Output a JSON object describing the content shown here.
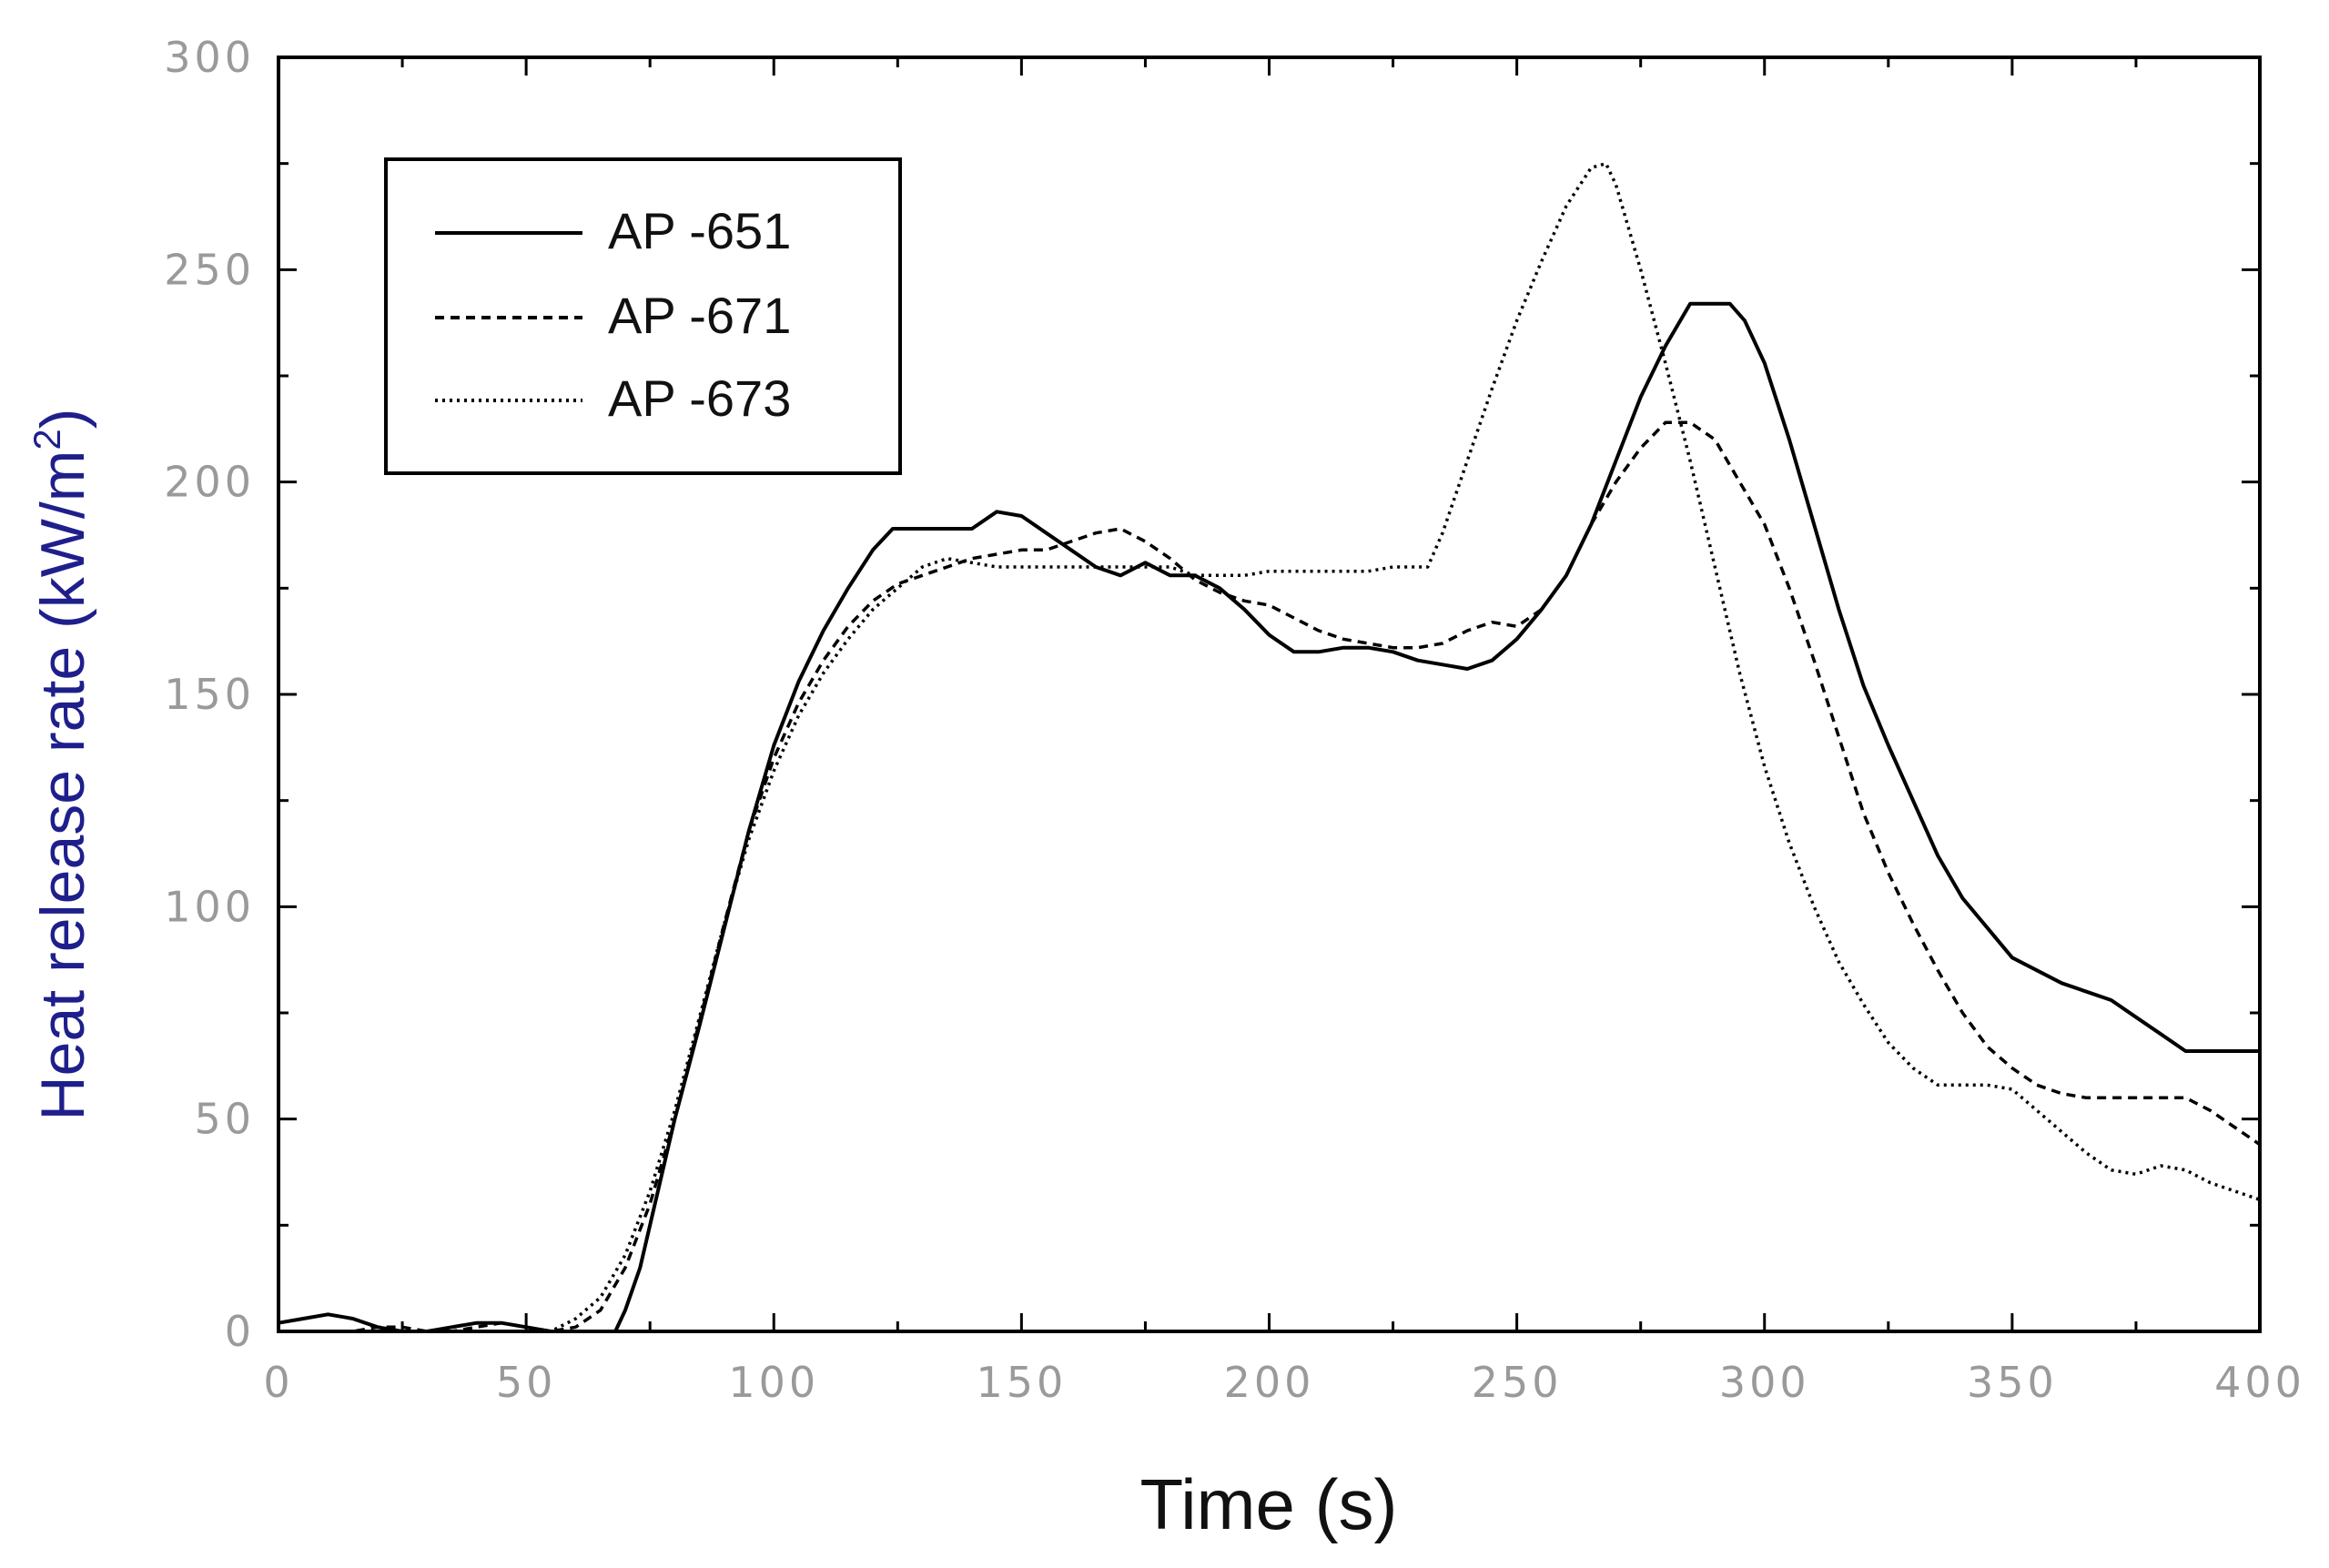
{
  "chart_data": {
    "type": "line",
    "title": "",
    "xlabel": "Time (s)",
    "ylabel_main": "Heat release rate (kW/m",
    "ylabel_sup": "2",
    "ylabel_close": ")",
    "xlim": [
      0,
      400
    ],
    "ylim": [
      0,
      300
    ],
    "xticks": [
      0,
      50,
      100,
      150,
      200,
      250,
      300,
      350,
      400
    ],
    "yticks": [
      0,
      50,
      100,
      150,
      200,
      250,
      300
    ],
    "grid": false,
    "legend_position": "top-left",
    "colors": {
      "axis": "#000000",
      "ticks_text": "#9a9a9a",
      "xlabel": "#111111",
      "ylabel": "#1f1f8c"
    },
    "series": [
      {
        "name": "AP -651",
        "style": "solid",
        "points": [
          [
            0,
            2
          ],
          [
            5,
            3
          ],
          [
            10,
            4
          ],
          [
            15,
            3
          ],
          [
            20,
            1
          ],
          [
            25,
            0
          ],
          [
            30,
            0
          ],
          [
            35,
            1
          ],
          [
            40,
            2
          ],
          [
            45,
            2
          ],
          [
            50,
            1
          ],
          [
            55,
            0
          ],
          [
            60,
            0
          ],
          [
            65,
            0
          ],
          [
            68,
            0
          ],
          [
            70,
            5
          ],
          [
            73,
            15
          ],
          [
            76,
            30
          ],
          [
            80,
            50
          ],
          [
            85,
            72
          ],
          [
            90,
            95
          ],
          [
            95,
            118
          ],
          [
            100,
            138
          ],
          [
            105,
            153
          ],
          [
            110,
            165
          ],
          [
            115,
            175
          ],
          [
            120,
            184
          ],
          [
            124,
            189
          ],
          [
            130,
            189
          ],
          [
            135,
            189
          ],
          [
            140,
            189
          ],
          [
            145,
            193
          ],
          [
            150,
            192
          ],
          [
            155,
            188
          ],
          [
            160,
            184
          ],
          [
            165,
            180
          ],
          [
            170,
            178
          ],
          [
            175,
            181
          ],
          [
            180,
            178
          ],
          [
            185,
            178
          ],
          [
            190,
            175
          ],
          [
            195,
            170
          ],
          [
            200,
            164
          ],
          [
            205,
            160
          ],
          [
            210,
            160
          ],
          [
            215,
            161
          ],
          [
            220,
            161
          ],
          [
            225,
            160
          ],
          [
            230,
            158
          ],
          [
            235,
            157
          ],
          [
            240,
            156
          ],
          [
            245,
            158
          ],
          [
            250,
            163
          ],
          [
            255,
            170
          ],
          [
            260,
            178
          ],
          [
            265,
            190
          ],
          [
            270,
            205
          ],
          [
            275,
            220
          ],
          [
            280,
            232
          ],
          [
            285,
            242
          ],
          [
            290,
            242
          ],
          [
            293,
            242
          ],
          [
            296,
            238
          ],
          [
            300,
            228
          ],
          [
            305,
            210
          ],
          [
            310,
            190
          ],
          [
            315,
            170
          ],
          [
            320,
            152
          ],
          [
            325,
            138
          ],
          [
            330,
            125
          ],
          [
            335,
            112
          ],
          [
            340,
            102
          ],
          [
            345,
            95
          ],
          [
            350,
            88
          ],
          [
            355,
            85
          ],
          [
            360,
            82
          ],
          [
            365,
            80
          ],
          [
            370,
            78
          ],
          [
            375,
            74
          ],
          [
            380,
            70
          ],
          [
            385,
            66
          ],
          [
            390,
            66
          ],
          [
            395,
            66
          ],
          [
            400,
            66
          ]
        ]
      },
      {
        "name": "AP -671",
        "style": "dashed",
        "points": [
          [
            0,
            0
          ],
          [
            5,
            0
          ],
          [
            10,
            0
          ],
          [
            15,
            0
          ],
          [
            20,
            1
          ],
          [
            25,
            1
          ],
          [
            30,
            0
          ],
          [
            35,
            0
          ],
          [
            40,
            1
          ],
          [
            45,
            2
          ],
          [
            50,
            1
          ],
          [
            55,
            0
          ],
          [
            60,
            1
          ],
          [
            65,
            5
          ],
          [
            70,
            15
          ],
          [
            75,
            30
          ],
          [
            80,
            50
          ],
          [
            85,
            73
          ],
          [
            90,
            96
          ],
          [
            95,
            118
          ],
          [
            100,
            135
          ],
          [
            105,
            148
          ],
          [
            110,
            158
          ],
          [
            115,
            166
          ],
          [
            120,
            172
          ],
          [
            125,
            176
          ],
          [
            130,
            178
          ],
          [
            135,
            180
          ],
          [
            140,
            182
          ],
          [
            145,
            183
          ],
          [
            150,
            184
          ],
          [
            155,
            184
          ],
          [
            160,
            186
          ],
          [
            165,
            188
          ],
          [
            170,
            189
          ],
          [
            175,
            186
          ],
          [
            180,
            182
          ],
          [
            185,
            177
          ],
          [
            190,
            174
          ],
          [
            195,
            172
          ],
          [
            200,
            171
          ],
          [
            205,
            168
          ],
          [
            210,
            165
          ],
          [
            215,
            163
          ],
          [
            220,
            162
          ],
          [
            225,
            161
          ],
          [
            230,
            161
          ],
          [
            235,
            162
          ],
          [
            240,
            165
          ],
          [
            245,
            167
          ],
          [
            250,
            166
          ],
          [
            255,
            170
          ],
          [
            260,
            178
          ],
          [
            265,
            190
          ],
          [
            270,
            200
          ],
          [
            275,
            208
          ],
          [
            280,
            214
          ],
          [
            285,
            214
          ],
          [
            290,
            210
          ],
          [
            295,
            200
          ],
          [
            300,
            190
          ],
          [
            305,
            175
          ],
          [
            310,
            158
          ],
          [
            315,
            140
          ],
          [
            320,
            122
          ],
          [
            325,
            108
          ],
          [
            330,
            96
          ],
          [
            335,
            85
          ],
          [
            340,
            75
          ],
          [
            345,
            67
          ],
          [
            350,
            62
          ],
          [
            355,
            58
          ],
          [
            360,
            56
          ],
          [
            365,
            55
          ],
          [
            370,
            55
          ],
          [
            375,
            55
          ],
          [
            380,
            55
          ],
          [
            385,
            55
          ],
          [
            390,
            52
          ],
          [
            395,
            48
          ],
          [
            400,
            44
          ]
        ]
      },
      {
        "name": "AP -673",
        "style": "dotted",
        "points": [
          [
            0,
            0
          ],
          [
            5,
            0
          ],
          [
            10,
            0
          ],
          [
            15,
            0
          ],
          [
            20,
            0
          ],
          [
            25,
            0
          ],
          [
            30,
            0
          ],
          [
            35,
            0
          ],
          [
            40,
            0
          ],
          [
            45,
            0
          ],
          [
            50,
            0
          ],
          [
            55,
            0
          ],
          [
            60,
            3
          ],
          [
            65,
            8
          ],
          [
            70,
            18
          ],
          [
            75,
            33
          ],
          [
            80,
            52
          ],
          [
            85,
            74
          ],
          [
            90,
            96
          ],
          [
            95,
            116
          ],
          [
            100,
            132
          ],
          [
            105,
            145
          ],
          [
            110,
            155
          ],
          [
            115,
            163
          ],
          [
            120,
            170
          ],
          [
            125,
            175
          ],
          [
            130,
            180
          ],
          [
            135,
            182
          ],
          [
            140,
            181
          ],
          [
            145,
            180
          ],
          [
            150,
            180
          ],
          [
            155,
            180
          ],
          [
            160,
            180
          ],
          [
            165,
            180
          ],
          [
            170,
            180
          ],
          [
            175,
            180
          ],
          [
            180,
            180
          ],
          [
            185,
            178
          ],
          [
            190,
            178
          ],
          [
            195,
            178
          ],
          [
            200,
            179
          ],
          [
            205,
            179
          ],
          [
            210,
            179
          ],
          [
            215,
            179
          ],
          [
            220,
            179
          ],
          [
            225,
            180
          ],
          [
            230,
            180
          ],
          [
            232,
            180
          ],
          [
            235,
            188
          ],
          [
            240,
            205
          ],
          [
            245,
            222
          ],
          [
            250,
            238
          ],
          [
            255,
            252
          ],
          [
            260,
            265
          ],
          [
            265,
            274
          ],
          [
            268,
            275
          ],
          [
            270,
            270
          ],
          [
            275,
            250
          ],
          [
            280,
            228
          ],
          [
            285,
            205
          ],
          [
            290,
            180
          ],
          [
            295,
            155
          ],
          [
            300,
            133
          ],
          [
            305,
            115
          ],
          [
            310,
            100
          ],
          [
            315,
            87
          ],
          [
            320,
            77
          ],
          [
            325,
            68
          ],
          [
            330,
            62
          ],
          [
            335,
            58
          ],
          [
            340,
            58
          ],
          [
            345,
            58
          ],
          [
            350,
            57
          ],
          [
            355,
            52
          ],
          [
            360,
            47
          ],
          [
            365,
            42
          ],
          [
            370,
            38
          ],
          [
            375,
            37
          ],
          [
            380,
            39
          ],
          [
            385,
            38
          ],
          [
            390,
            35
          ],
          [
            395,
            33
          ],
          [
            400,
            31
          ]
        ]
      }
    ]
  }
}
